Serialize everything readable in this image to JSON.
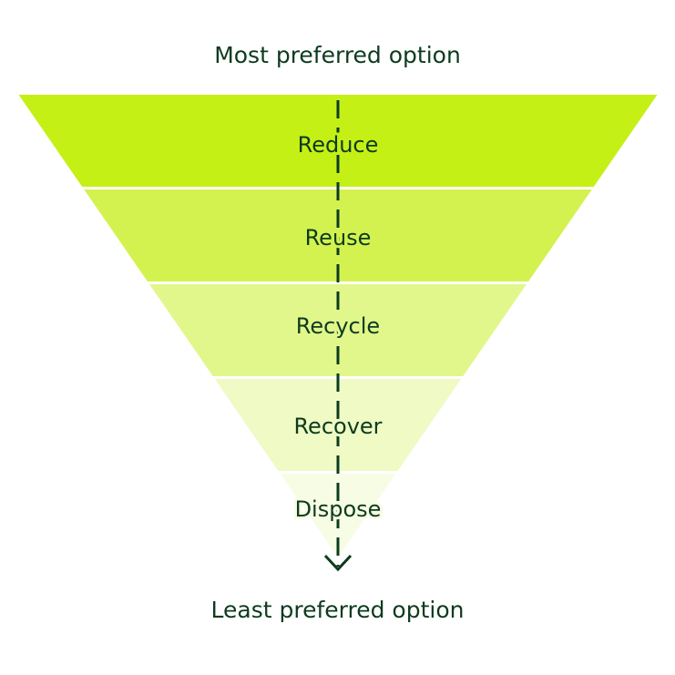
{
  "top_label": "Most preferred option",
  "bottom_label": "Least preferred option",
  "levels": [
    {
      "label": "Reduce",
      "color": "#C5F016"
    },
    {
      "label": "Reuse",
      "color": "#D4F24F"
    },
    {
      "label": "Recycle",
      "color": "#E2F78B"
    },
    {
      "label": "Recover",
      "color": "#EFFAC4"
    },
    {
      "label": "Dispose",
      "color": "#F7FCE4"
    }
  ],
  "text_color": "#0D3B1E",
  "arrow_direction": "down"
}
